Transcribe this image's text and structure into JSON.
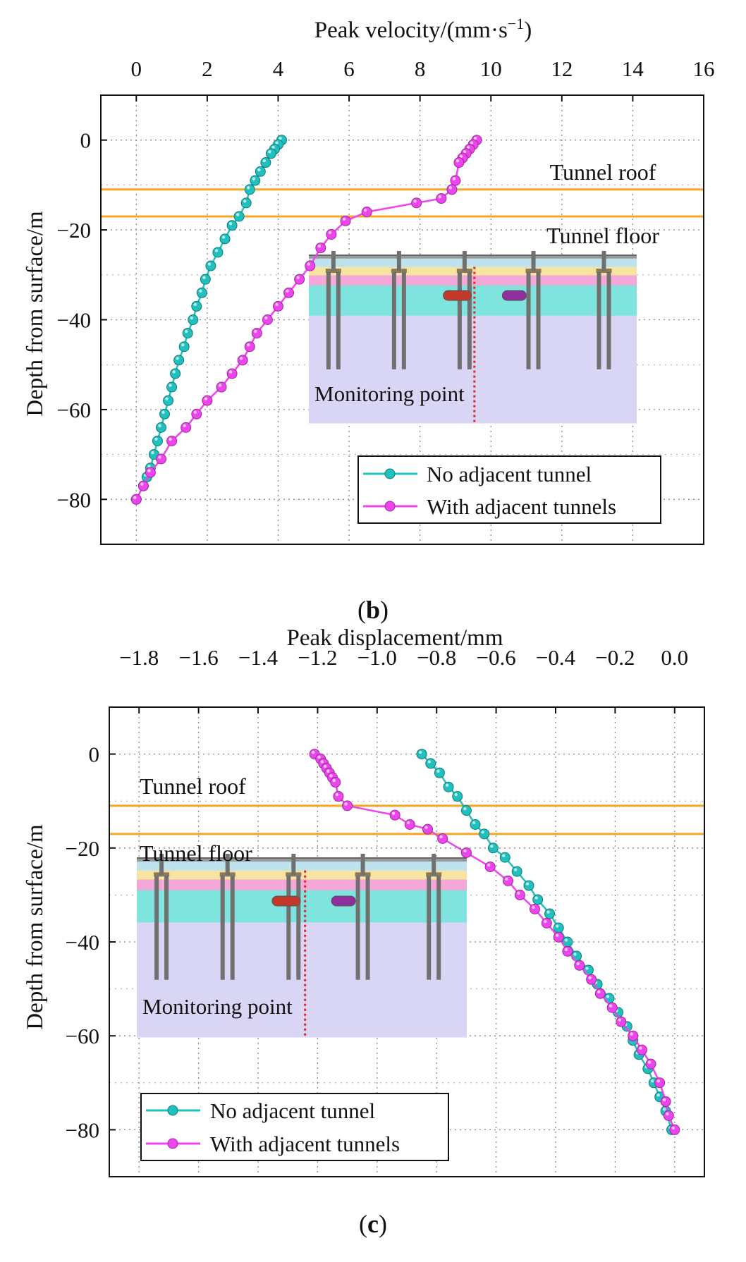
{
  "figure_b": {
    "caption_open": "(",
    "caption_letter": "b",
    "caption_close": ")",
    "top_axis_title": "Peak velocity/(mm·s",
    "top_axis_title_sup": "−1",
    "top_axis_title_close": ")",
    "y_axis_title": "Depth from surface/m",
    "roof_label": "Tunnel roof",
    "floor_label": "Tunnel floor",
    "inset_label": "Monitoring point",
    "legend": [
      "No adjacent tunnel",
      "With adjacent tunnels"
    ]
  },
  "figure_c": {
    "caption_open": "(",
    "caption_letter": "c",
    "caption_close": ")",
    "top_axis_title": "Peak displacement/mm",
    "y_axis_title": "Depth from surface/m",
    "roof_label": "Tunnel roof",
    "floor_label": "Tunnel floor",
    "inset_label": "Monitoring point",
    "legend": [
      "No adjacent tunnel",
      "With adjacent tunnels"
    ]
  },
  "colors": {
    "series_a": "#1fc0bd",
    "series_b": "#ee44ee",
    "tunnel_line": "#f5a623",
    "inset_base": "#d9d6f5",
    "inset_aqua": "#7fe3de",
    "inset_pink": "#f4a8d8",
    "inset_yellow": "#f6e4a0",
    "inset_blue": "#bfe2ef",
    "pile": "#707070",
    "monitor_line": "#e0232a",
    "tunnel_red": "#c0392b",
    "tunnel_purple": "#8e2f9e"
  },
  "chart_data": [
    {
      "type": "line",
      "title": "Peak velocity/(mm·s−1)",
      "xlabel": "Peak velocity/(mm·s−1)",
      "ylabel": "Depth from surface/m",
      "xlim": [
        -1,
        16
      ],
      "ylim": [
        -90,
        10
      ],
      "xticks": [
        0,
        2,
        4,
        6,
        8,
        10,
        12,
        14,
        16
      ],
      "yticks": [
        0,
        -20,
        -40,
        -60,
        -80
      ],
      "xtick_labels": [
        "0",
        "2",
        "4",
        "6",
        "8",
        "10",
        "12",
        "14",
        "16"
      ],
      "ytick_labels": [
        "0",
        "−20",
        "−40",
        "−60",
        "−80"
      ],
      "hlines": [
        {
          "y": -11,
          "label": "Tunnel roof"
        },
        {
          "y": -17,
          "label": "Tunnel floor"
        }
      ],
      "legend_position": "bottom-right",
      "series": [
        {
          "name": "No adjacent tunnel",
          "points": [
            [
              4.1,
              0
            ],
            [
              4.0,
              -1
            ],
            [
              3.9,
              -2
            ],
            [
              3.8,
              -3
            ],
            [
              3.65,
              -5
            ],
            [
              3.5,
              -7
            ],
            [
              3.35,
              -9
            ],
            [
              3.2,
              -11
            ],
            [
              3.1,
              -14
            ],
            [
              2.9,
              -17
            ],
            [
              2.7,
              -19
            ],
            [
              2.5,
              -22
            ],
            [
              2.3,
              -25
            ],
            [
              2.1,
              -28
            ],
            [
              1.95,
              -31
            ],
            [
              1.85,
              -34
            ],
            [
              1.7,
              -37
            ],
            [
              1.6,
              -40
            ],
            [
              1.45,
              -43
            ],
            [
              1.35,
              -46
            ],
            [
              1.2,
              -49
            ],
            [
              1.1,
              -52
            ],
            [
              1.0,
              -55
            ],
            [
              0.9,
              -58
            ],
            [
              0.8,
              -61
            ],
            [
              0.7,
              -64
            ],
            [
              0.6,
              -67
            ],
            [
              0.5,
              -70
            ],
            [
              0.4,
              -73
            ],
            [
              0.3,
              -75
            ],
            [
              0.2,
              -77
            ],
            [
              0.0,
              -80
            ]
          ]
        },
        {
          "name": "With adjacent tunnels",
          "points": [
            [
              9.6,
              0
            ],
            [
              9.5,
              -1
            ],
            [
              9.4,
              -2
            ],
            [
              9.3,
              -3
            ],
            [
              9.2,
              -4
            ],
            [
              9.1,
              -5
            ],
            [
              9.0,
              -9
            ],
            [
              8.9,
              -11
            ],
            [
              8.6,
              -13
            ],
            [
              7.9,
              -14
            ],
            [
              6.5,
              -16
            ],
            [
              5.9,
              -18
            ],
            [
              5.5,
              -21
            ],
            [
              5.2,
              -24
            ],
            [
              4.9,
              -28
            ],
            [
              4.6,
              -31
            ],
            [
              4.3,
              -34
            ],
            [
              4.0,
              -37
            ],
            [
              3.7,
              -40
            ],
            [
              3.4,
              -43
            ],
            [
              3.2,
              -46
            ],
            [
              3.0,
              -49
            ],
            [
              2.7,
              -52
            ],
            [
              2.4,
              -55
            ],
            [
              2.0,
              -58
            ],
            [
              1.7,
              -61
            ],
            [
              1.4,
              -64
            ],
            [
              1.0,
              -67
            ],
            [
              0.7,
              -71
            ],
            [
              0.4,
              -74
            ],
            [
              0.2,
              -77
            ],
            [
              0.0,
              -80
            ]
          ]
        }
      ]
    },
    {
      "type": "line",
      "title": "Peak displacement/mm",
      "xlabel": "Peak displacement/mm",
      "ylabel": "Depth from surface/m",
      "xlim": [
        -1.9,
        0.1
      ],
      "ylim": [
        -90,
        10
      ],
      "xticks": [
        -1.8,
        -1.6,
        -1.4,
        -1.2,
        -1.0,
        -0.8,
        -0.6,
        -0.4,
        -0.2,
        0.0
      ],
      "yticks": [
        0,
        -20,
        -40,
        -60,
        -80
      ],
      "xtick_labels": [
        "−1.8",
        "−1.6",
        "−1.4",
        "−1.2",
        "−1.0",
        "−0.8",
        "−0.6",
        "−0.4",
        "−0.2",
        "0.0"
      ],
      "ytick_labels": [
        "0",
        "−20",
        "−40",
        "−60",
        "−80"
      ],
      "hlines": [
        {
          "y": -11,
          "label": "Tunnel roof"
        },
        {
          "y": -17,
          "label": "Tunnel floor"
        }
      ],
      "legend_position": "bottom-left",
      "series": [
        {
          "name": "No adjacent tunnel",
          "points": [
            [
              -0.85,
              0
            ],
            [
              -0.82,
              -2
            ],
            [
              -0.79,
              -4
            ],
            [
              -0.76,
              -7
            ],
            [
              -0.73,
              -9
            ],
            [
              -0.7,
              -12
            ],
            [
              -0.67,
              -15
            ],
            [
              -0.64,
              -17
            ],
            [
              -0.61,
              -20
            ],
            [
              -0.57,
              -22
            ],
            [
              -0.53,
              -25
            ],
            [
              -0.49,
              -28
            ],
            [
              -0.46,
              -31
            ],
            [
              -0.42,
              -34
            ],
            [
              -0.39,
              -37
            ],
            [
              -0.36,
              -40
            ],
            [
              -0.33,
              -43
            ],
            [
              -0.29,
              -46
            ],
            [
              -0.26,
              -49
            ],
            [
              -0.22,
              -52
            ],
            [
              -0.19,
              -55
            ],
            [
              -0.16,
              -58
            ],
            [
              -0.14,
              -61
            ],
            [
              -0.12,
              -64
            ],
            [
              -0.09,
              -67
            ],
            [
              -0.07,
              -70
            ],
            [
              -0.05,
              -73
            ],
            [
              -0.03,
              -76
            ],
            [
              -0.01,
              -80
            ]
          ]
        },
        {
          "name": "With adjacent tunnels",
          "points": [
            [
              -1.21,
              0
            ],
            [
              -1.19,
              -1
            ],
            [
              -1.18,
              -2
            ],
            [
              -1.17,
              -3
            ],
            [
              -1.16,
              -4
            ],
            [
              -1.15,
              -5
            ],
            [
              -1.14,
              -6
            ],
            [
              -1.13,
              -9
            ],
            [
              -1.1,
              -11
            ],
            [
              -0.94,
              -13
            ],
            [
              -0.89,
              -15
            ],
            [
              -0.83,
              -16
            ],
            [
              -0.78,
              -18
            ],
            [
              -0.7,
              -21
            ],
            [
              -0.62,
              -24
            ],
            [
              -0.56,
              -27
            ],
            [
              -0.52,
              -30
            ],
            [
              -0.47,
              -33
            ],
            [
              -0.43,
              -36
            ],
            [
              -0.39,
              -39
            ],
            [
              -0.36,
              -42
            ],
            [
              -0.32,
              -45
            ],
            [
              -0.28,
              -48
            ],
            [
              -0.25,
              -51
            ],
            [
              -0.21,
              -54
            ],
            [
              -0.18,
              -57
            ],
            [
              -0.14,
              -60
            ],
            [
              -0.11,
              -63
            ],
            [
              -0.08,
              -66
            ],
            [
              -0.05,
              -70
            ],
            [
              -0.03,
              -74
            ],
            [
              -0.02,
              -77
            ],
            [
              0.0,
              -80
            ]
          ]
        }
      ]
    }
  ]
}
